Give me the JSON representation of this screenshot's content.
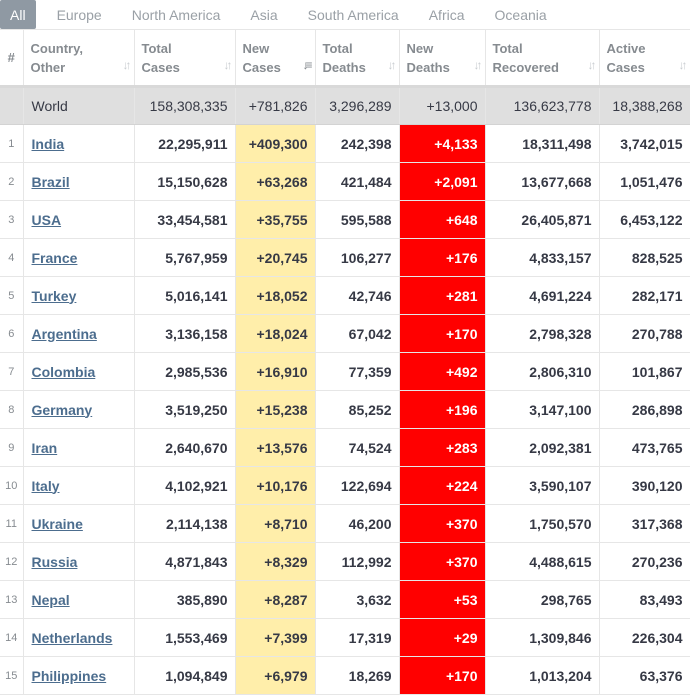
{
  "tabs": [
    {
      "label": "All",
      "active": true
    },
    {
      "label": "Europe",
      "active": false
    },
    {
      "label": "North America",
      "active": false
    },
    {
      "label": "Asia",
      "active": false
    },
    {
      "label": "South America",
      "active": false
    },
    {
      "label": "Africa",
      "active": false
    },
    {
      "label": "Oceania",
      "active": false
    }
  ],
  "headers": {
    "num": "#",
    "country": [
      "Country,",
      "Other"
    ],
    "total_cases": [
      "Total",
      "Cases"
    ],
    "new_cases": [
      "New",
      "Cases"
    ],
    "total_deaths": [
      "Total",
      "Deaths"
    ],
    "new_deaths": [
      "New",
      "Deaths"
    ],
    "total_recovered": [
      "Total",
      "Recovered"
    ],
    "active_cases": [
      "Active",
      "Cases"
    ]
  },
  "world": {
    "country": "World",
    "total_cases": "158,308,335",
    "new_cases": "+781,826",
    "total_deaths": "3,296,289",
    "new_deaths": "+13,000",
    "total_recovered": "136,623,778",
    "active_cases": "18,388,268"
  },
  "rows": [
    {
      "num": "1",
      "country": "India",
      "total_cases": "22,295,911",
      "new_cases": "+409,300",
      "total_deaths": "242,398",
      "new_deaths": "+4,133",
      "total_recovered": "18,311,498",
      "active_cases": "3,742,015"
    },
    {
      "num": "2",
      "country": "Brazil",
      "total_cases": "15,150,628",
      "new_cases": "+63,268",
      "total_deaths": "421,484",
      "new_deaths": "+2,091",
      "total_recovered": "13,677,668",
      "active_cases": "1,051,476"
    },
    {
      "num": "3",
      "country": "USA",
      "total_cases": "33,454,581",
      "new_cases": "+35,755",
      "total_deaths": "595,588",
      "new_deaths": "+648",
      "total_recovered": "26,405,871",
      "active_cases": "6,453,122"
    },
    {
      "num": "4",
      "country": "France",
      "total_cases": "5,767,959",
      "new_cases": "+20,745",
      "total_deaths": "106,277",
      "new_deaths": "+176",
      "total_recovered": "4,833,157",
      "active_cases": "828,525"
    },
    {
      "num": "5",
      "country": "Turkey",
      "total_cases": "5,016,141",
      "new_cases": "+18,052",
      "total_deaths": "42,746",
      "new_deaths": "+281",
      "total_recovered": "4,691,224",
      "active_cases": "282,171"
    },
    {
      "num": "6",
      "country": "Argentina",
      "total_cases": "3,136,158",
      "new_cases": "+18,024",
      "total_deaths": "67,042",
      "new_deaths": "+170",
      "total_recovered": "2,798,328",
      "active_cases": "270,788"
    },
    {
      "num": "7",
      "country": "Colombia",
      "total_cases": "2,985,536",
      "new_cases": "+16,910",
      "total_deaths": "77,359",
      "new_deaths": "+492",
      "total_recovered": "2,806,310",
      "active_cases": "101,867"
    },
    {
      "num": "8",
      "country": "Germany",
      "total_cases": "3,519,250",
      "new_cases": "+15,238",
      "total_deaths": "85,252",
      "new_deaths": "+196",
      "total_recovered": "3,147,100",
      "active_cases": "286,898"
    },
    {
      "num": "9",
      "country": "Iran",
      "total_cases": "2,640,670",
      "new_cases": "+13,576",
      "total_deaths": "74,524",
      "new_deaths": "+283",
      "total_recovered": "2,092,381",
      "active_cases": "473,765"
    },
    {
      "num": "10",
      "country": "Italy",
      "total_cases": "4,102,921",
      "new_cases": "+10,176",
      "total_deaths": "122,694",
      "new_deaths": "+224",
      "total_recovered": "3,590,107",
      "active_cases": "390,120"
    },
    {
      "num": "11",
      "country": "Ukraine",
      "total_cases": "2,114,138",
      "new_cases": "+8,710",
      "total_deaths": "46,200",
      "new_deaths": "+370",
      "total_recovered": "1,750,570",
      "active_cases": "317,368"
    },
    {
      "num": "12",
      "country": "Russia",
      "total_cases": "4,871,843",
      "new_cases": "+8,329",
      "total_deaths": "112,992",
      "new_deaths": "+370",
      "total_recovered": "4,488,615",
      "active_cases": "270,236"
    },
    {
      "num": "13",
      "country": "Nepal",
      "total_cases": "385,890",
      "new_cases": "+8,287",
      "total_deaths": "3,632",
      "new_deaths": "+53",
      "total_recovered": "298,765",
      "active_cases": "83,493"
    },
    {
      "num": "14",
      "country": "Netherlands",
      "total_cases": "1,553,469",
      "new_cases": "+7,399",
      "total_deaths": "17,319",
      "new_deaths": "+29",
      "total_recovered": "1,309,846",
      "active_cases": "226,304"
    },
    {
      "num": "15",
      "country": "Philippines",
      "total_cases": "1,094,849",
      "new_cases": "+6,979",
      "total_deaths": "18,269",
      "new_deaths": "+170",
      "total_recovered": "1,013,204",
      "active_cases": "63,376"
    }
  ],
  "colors": {
    "new_cases_bg": "#ffeeaa",
    "new_deaths_bg": "#ff0000",
    "world_row_bg": "#dfdfdf",
    "link": "#4c6d8e",
    "active_tab_bg": "#8f99a3"
  }
}
